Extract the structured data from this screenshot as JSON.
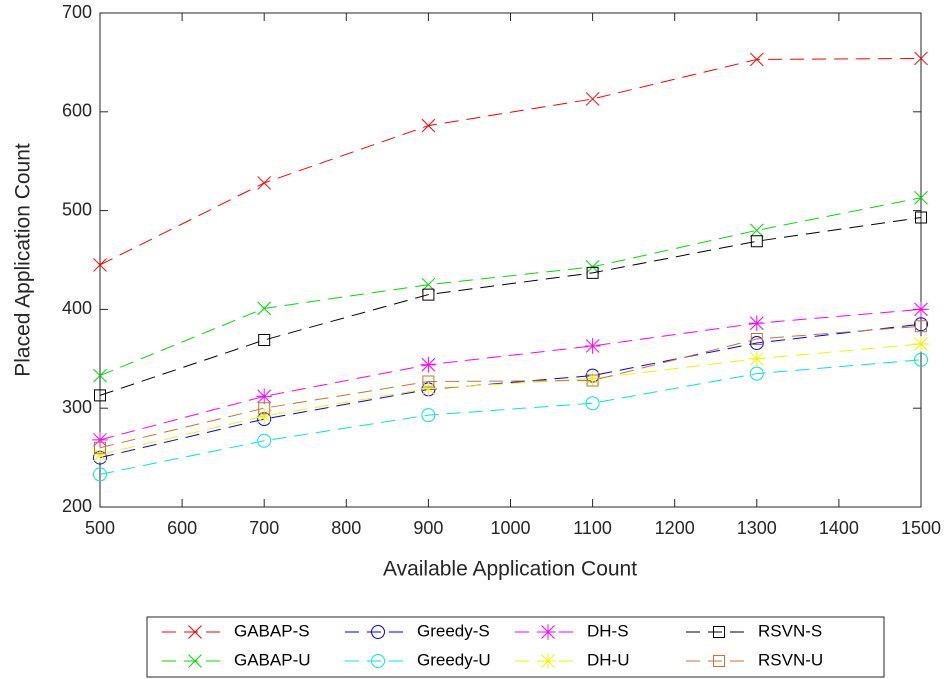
{
  "chart_data": {
    "type": "line",
    "x_label": "Available Application Count",
    "y_label": "Placed Application Count",
    "x": [
      500,
      700,
      900,
      1100,
      1300,
      1500
    ],
    "xlim": [
      500,
      1500
    ],
    "xticks": [
      500,
      600,
      700,
      800,
      900,
      1000,
      1100,
      1200,
      1300,
      1400,
      1500
    ],
    "ylim": [
      200,
      700
    ],
    "yticks": [
      200,
      300,
      400,
      500,
      600,
      700
    ],
    "grid": false,
    "legend_position": "bottom",
    "series": [
      {
        "name": "GABAP-S",
        "color": "#ff0000",
        "marker": "x",
        "values": [
          445,
          528,
          586,
          613,
          653,
          654
        ]
      },
      {
        "name": "GABAP-U",
        "color": "#00dd00",
        "marker": "x",
        "values": [
          333,
          401,
          425,
          443,
          480,
          513
        ]
      },
      {
        "name": "Greedy-S",
        "color": "#0000ff",
        "marker": "circle",
        "values": [
          250,
          289,
          319,
          333,
          366,
          385
        ]
      },
      {
        "name": "Greedy-U",
        "color": "#00e5e5",
        "marker": "circle",
        "values": [
          233,
          267,
          293,
          305,
          335,
          349
        ]
      },
      {
        "name": "DH-S",
        "color": "#ff00ff",
        "marker": "star",
        "values": [
          268,
          312,
          344,
          363,
          386,
          400
        ]
      },
      {
        "name": "DH-U",
        "color": "#f2f200",
        "marker": "star",
        "values": [
          253,
          292,
          320,
          330,
          350,
          365
        ]
      },
      {
        "name": "RSVN-S",
        "color": "#000000",
        "marker": "square",
        "values": [
          313,
          369,
          415,
          437,
          469,
          493
        ]
      },
      {
        "name": "RSVN-U",
        "color": "#c07830",
        "marker": "square",
        "values": [
          260,
          300,
          327,
          328,
          370,
          383
        ]
      }
    ]
  }
}
